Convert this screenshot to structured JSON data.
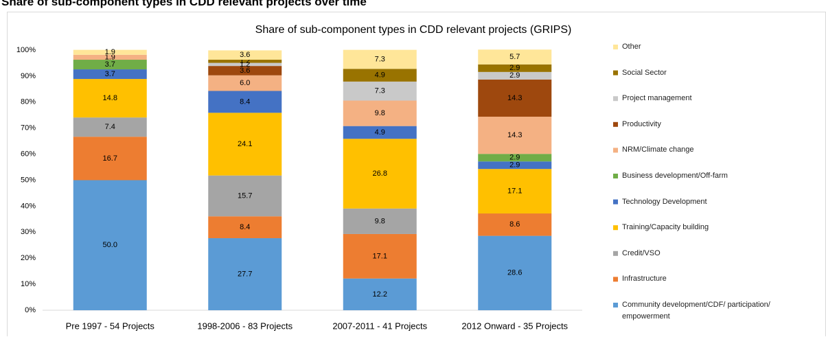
{
  "page_heading": "Share of sub-component types in CDD relevant projects over time",
  "chart_data": {
    "type": "stacked_bar",
    "title": "Share of sub-component types in CDD relevant projects (GRIPS)",
    "categories": [
      "Pre 1997 - 54 Projects",
      "1998-2006 - 83 Projects",
      "2007-2011 - 41 Projects",
      "2012 Onward -  35 Projects"
    ],
    "ylim": [
      0,
      100
    ],
    "yticks": [
      {
        "value": 0,
        "label": "0%"
      },
      {
        "value": 10,
        "label": "10%"
      },
      {
        "value": 20,
        "label": "20%"
      },
      {
        "value": 30,
        "label": "30%"
      },
      {
        "value": 40,
        "label": "40%"
      },
      {
        "value": 50,
        "label": "50%"
      },
      {
        "value": 60,
        "label": "60%"
      },
      {
        "value": 70,
        "label": "70%"
      },
      {
        "value": 80,
        "label": "80%"
      },
      {
        "value": 90,
        "label": "90%"
      },
      {
        "value": 100,
        "label": "100%"
      }
    ],
    "grid": false,
    "legend": "right",
    "series": [
      {
        "name": "Community development/CDF/ participation/ empowerment",
        "color": "#5b9bd5",
        "values": [
          50,
          27.7,
          12.2,
          28.6
        ],
        "value_labels": [
          "50.0",
          "27.7",
          "12.2",
          "28.6"
        ]
      },
      {
        "name": "Infrastructure",
        "color": "#ed7d31",
        "values": [
          16.7,
          8.4,
          17.1,
          8.6
        ],
        "value_labels": [
          "16.7",
          "8.4",
          "17.1",
          "8.6"
        ]
      },
      {
        "name": "Credit/VSO",
        "color": "#a5a5a5",
        "values": [
          7.4,
          15.7,
          9.8,
          null
        ],
        "value_labels": [
          "7.4",
          "15.7",
          "9.8",
          null
        ]
      },
      {
        "name": "Training/Capacity building",
        "color": "#ffc000",
        "values": [
          14.8,
          24.1,
          26.8,
          17.1
        ],
        "value_labels": [
          "14.8",
          "24.1",
          "26.8",
          "17.1"
        ]
      },
      {
        "name": "Technology Development",
        "color": "#4472c4",
        "values": [
          3.7,
          8.4,
          4.9,
          2.9
        ],
        "value_labels": [
          "3.7",
          "8.4",
          "4.9",
          "2.9"
        ]
      },
      {
        "name": "Business development/Off-farm",
        "color": "#70ad47",
        "values": [
          3.7,
          null,
          null,
          2.9
        ],
        "value_labels": [
          "3.7",
          null,
          null,
          "2.9"
        ]
      },
      {
        "name": "NRM/Climate change",
        "color": "#f4b183",
        "values": [
          1.9,
          6,
          9.8,
          14.3
        ],
        "value_labels": [
          "1.9",
          "6.0",
          "9.8",
          "14.3"
        ]
      },
      {
        "name": "Productivity",
        "color": "#9e480e",
        "values": [
          null,
          3.6,
          null,
          14.3
        ],
        "value_labels": [
          null,
          "3.6",
          null,
          "14.3"
        ]
      },
      {
        "name": "Project management",
        "color": "#c9c9c9",
        "values": [
          null,
          1.2,
          7.3,
          2.9
        ],
        "value_labels": [
          null,
          "1.2",
          "7.3",
          "2.9"
        ]
      },
      {
        "name": "Social Sector",
        "color": "#997300",
        "values": [
          null,
          1.2,
          4.9,
          2.9
        ],
        "value_labels": [
          null,
          "1.2",
          "4.9",
          "2.9"
        ]
      },
      {
        "name": "Other",
        "color": "#ffe699",
        "values": [
          1.9,
          3.6,
          7.3,
          5.7
        ],
        "value_labels": [
          "1.9",
          "3.6",
          "7.3",
          "5.7"
        ]
      }
    ]
  }
}
